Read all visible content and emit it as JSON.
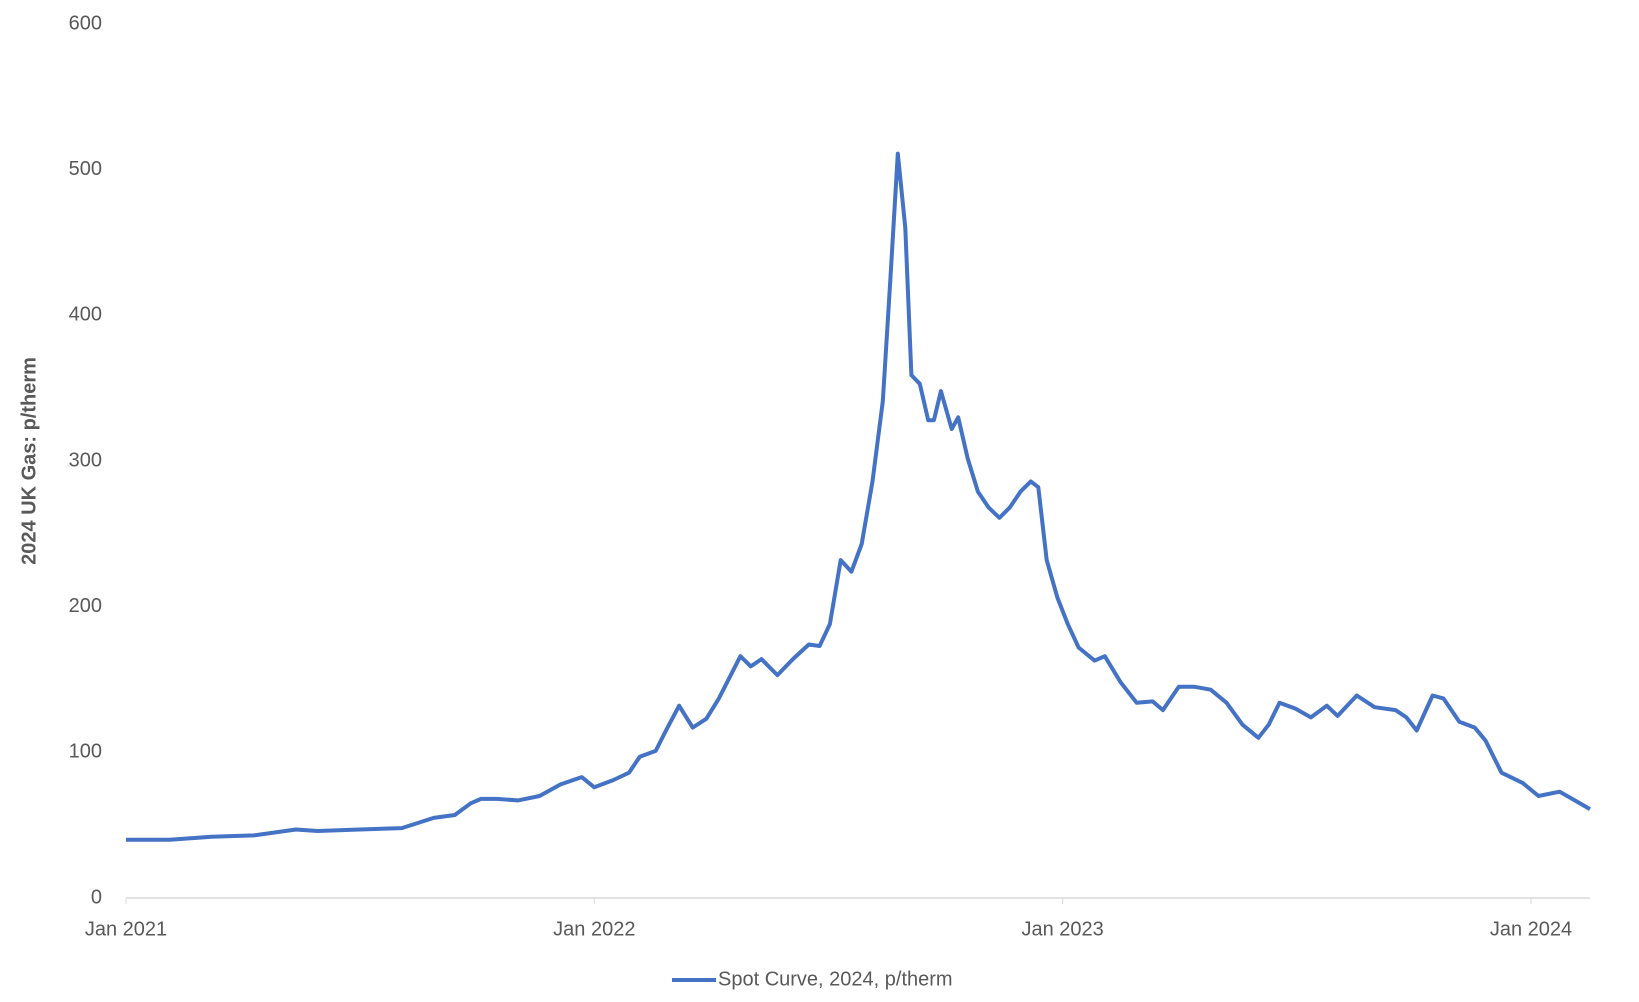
{
  "chart_data": {
    "type": "line",
    "ylabel": "2024 UK Gas: p/therm",
    "x": [
      2021.0,
      2021.093,
      2021.183,
      2021.273,
      2021.363,
      2021.409,
      2021.499,
      2021.589,
      2021.657,
      2021.702,
      2021.736,
      2021.758,
      2021.792,
      2021.837,
      2021.883,
      2021.928,
      2021.973,
      2022.0,
      2022.041,
      2022.074,
      2022.097,
      2022.131,
      2022.153,
      2022.181,
      2022.21,
      2022.239,
      2022.266,
      2022.312,
      2022.334,
      2022.357,
      2022.391,
      2022.424,
      2022.458,
      2022.481,
      2022.503,
      2022.526,
      2022.549,
      2022.571,
      2022.594,
      2022.616,
      2022.632,
      2022.648,
      2022.664,
      2022.677,
      2022.695,
      2022.713,
      2022.725,
      2022.74,
      2022.763,
      2022.777,
      2022.797,
      2022.819,
      2022.842,
      2022.865,
      2022.887,
      2022.91,
      2022.932,
      2022.948,
      2022.966,
      2022.989,
      2023.011,
      2023.034,
      2023.068,
      2023.09,
      2023.124,
      2023.158,
      2023.192,
      2023.214,
      2023.248,
      2023.282,
      2023.316,
      2023.35,
      2023.384,
      2023.418,
      2023.44,
      2023.463,
      2023.497,
      2023.53,
      2023.564,
      2023.587,
      2023.628,
      2023.666,
      2023.711,
      2023.734,
      2023.756,
      2023.79,
      2023.813,
      2023.847,
      2023.88,
      2023.903,
      2023.937,
      2023.982,
      2024.016,
      2024.061,
      2024.088,
      2024.126
    ],
    "series": [
      {
        "name": "Spot Curve, 2024, p/therm",
        "color": "#4472c4",
        "values": [
          40,
          40,
          42,
          43,
          47,
          46,
          47,
          48,
          55,
          57,
          65,
          68,
          68,
          67,
          70,
          78,
          83,
          76,
          81,
          86,
          97,
          101,
          115,
          132,
          117,
          123,
          137,
          166,
          159,
          164,
          153,
          164,
          174,
          173,
          188,
          232,
          224,
          243,
          286,
          341,
          424,
          511,
          460,
          359,
          353,
          328,
          328,
          348,
          322,
          330,
          302,
          279,
          268,
          261,
          268,
          279,
          286,
          282,
          232,
          206,
          188,
          172,
          163,
          166,
          148,
          134,
          135,
          129,
          145,
          145,
          143,
          134,
          119,
          110,
          119,
          134,
          130,
          124,
          132,
          125,
          139,
          131,
          129,
          124,
          115,
          139,
          137,
          121,
          117,
          108,
          86,
          79,
          70,
          73,
          68,
          61
        ]
      }
    ],
    "xlim": [
      2021.0,
      2024.126
    ],
    "xticks": [
      {
        "value": 2021,
        "label": "Jan 2021"
      },
      {
        "value": 2022,
        "label": "Jan 2022"
      },
      {
        "value": 2023,
        "label": "Jan 2023"
      },
      {
        "value": 2024,
        "label": "Jan 2024"
      }
    ],
    "ylim": [
      0,
      600
    ],
    "yticks": [
      0,
      100,
      200,
      300,
      400,
      500,
      600
    ],
    "grid": false
  }
}
